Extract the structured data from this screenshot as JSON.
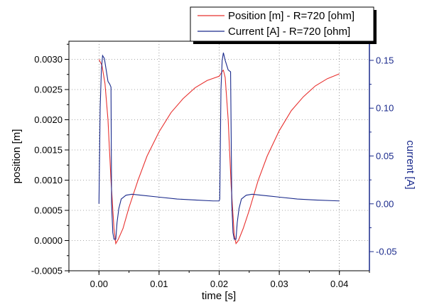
{
  "chart_data": {
    "type": "line",
    "title": "",
    "xlabel": "time [s]",
    "ylabel_left": "position [m]",
    "ylabel_right": "current [A]",
    "xlim": [
      -0.005,
      0.045
    ],
    "ylim_left": [
      -0.0005,
      0.0033
    ],
    "ylim_right": [
      -0.07,
      0.17
    ],
    "x_ticks": [
      {
        "value": 0.0,
        "label": "0.00"
      },
      {
        "value": 0.01,
        "label": "0.01"
      },
      {
        "value": 0.02,
        "label": "0.02"
      },
      {
        "value": 0.03,
        "label": "0.03"
      },
      {
        "value": 0.04,
        "label": "0.04"
      }
    ],
    "y_left_ticks": [
      {
        "value": -0.0005,
        "label": "-0.0005"
      },
      {
        "value": 0.0,
        "label": "0.0000"
      },
      {
        "value": 0.0005,
        "label": "0.0005"
      },
      {
        "value": 0.001,
        "label": "0.0010"
      },
      {
        "value": 0.0015,
        "label": "0.0015"
      },
      {
        "value": 0.002,
        "label": "0.0020"
      },
      {
        "value": 0.0025,
        "label": "0.0025"
      },
      {
        "value": 0.003,
        "label": "0.0030"
      }
    ],
    "y_right_ticks": [
      {
        "value": -0.05,
        "label": "-0.05"
      },
      {
        "value": 0.0,
        "label": "0.00"
      },
      {
        "value": 0.05,
        "label": "0.05"
      },
      {
        "value": 0.1,
        "label": "0.10"
      },
      {
        "value": 0.15,
        "label": "0.15"
      }
    ],
    "grid": true,
    "legend_position": "top-right",
    "series": [
      {
        "name": "Position [m] - R=720 [ohm]",
        "axis": "left",
        "color": "#e8312f",
        "points": [
          [
            0.0,
            0.003
          ],
          [
            0.0005,
            0.0029
          ],
          [
            0.001,
            0.0026
          ],
          [
            0.0015,
            0.002
          ],
          [
            0.002,
            0.001
          ],
          [
            0.0025,
            0.0002
          ],
          [
            0.0028,
            -5e-05
          ],
          [
            0.0032,
            2e-05
          ],
          [
            0.004,
            0.0002
          ],
          [
            0.005,
            0.00055
          ],
          [
            0.0065,
            0.001
          ],
          [
            0.008,
            0.0014
          ],
          [
            0.01,
            0.0018
          ],
          [
            0.012,
            0.00212
          ],
          [
            0.014,
            0.00235
          ],
          [
            0.016,
            0.00253
          ],
          [
            0.018,
            0.00265
          ],
          [
            0.02,
            0.00272
          ],
          [
            0.0202,
            0.00275
          ],
          [
            0.0205,
            0.0028
          ],
          [
            0.0207,
            0.00282
          ],
          [
            0.021,
            0.0027
          ],
          [
            0.0215,
            0.002
          ],
          [
            0.022,
            0.0009
          ],
          [
            0.0225,
            0.0001
          ],
          [
            0.0228,
            -5e-05
          ],
          [
            0.0232,
            0.0
          ],
          [
            0.024,
            0.0002
          ],
          [
            0.025,
            0.0005
          ],
          [
            0.0265,
            0.001
          ],
          [
            0.028,
            0.0014
          ],
          [
            0.03,
            0.00182
          ],
          [
            0.032,
            0.00215
          ],
          [
            0.034,
            0.00238
          ],
          [
            0.036,
            0.00256
          ],
          [
            0.038,
            0.00268
          ],
          [
            0.04,
            0.00276
          ]
        ]
      },
      {
        "name": "Current [A] - R=720 [ohm]",
        "axis": "right",
        "color": "#1a2a8c",
        "points": [
          [
            0.0,
            0.0
          ],
          [
            0.0002,
            0.1
          ],
          [
            0.0004,
            0.14
          ],
          [
            0.0006,
            0.155
          ],
          [
            0.0009,
            0.152
          ],
          [
            0.0012,
            0.14
          ],
          [
            0.0015,
            0.128
          ],
          [
            0.0018,
            0.125
          ],
          [
            0.002,
            0.122
          ],
          [
            0.0021,
            0.0
          ],
          [
            0.0023,
            -0.03
          ],
          [
            0.0025,
            -0.037
          ],
          [
            0.0028,
            -0.037
          ],
          [
            0.003,
            -0.02
          ],
          [
            0.0033,
            -0.005
          ],
          [
            0.0037,
            0.005
          ],
          [
            0.0045,
            0.009
          ],
          [
            0.0055,
            0.01
          ],
          [
            0.007,
            0.009
          ],
          [
            0.01,
            0.007
          ],
          [
            0.013,
            0.005
          ],
          [
            0.016,
            0.004
          ],
          [
            0.019,
            0.003
          ],
          [
            0.02,
            0.003
          ],
          [
            0.0201,
            0.005
          ],
          [
            0.0203,
            0.12
          ],
          [
            0.0205,
            0.15
          ],
          [
            0.0207,
            0.158
          ],
          [
            0.021,
            0.15
          ],
          [
            0.0215,
            0.14
          ],
          [
            0.0219,
            0.138
          ],
          [
            0.0221,
            0.0
          ],
          [
            0.0223,
            -0.03
          ],
          [
            0.0225,
            -0.037
          ],
          [
            0.0228,
            -0.037
          ],
          [
            0.023,
            -0.02
          ],
          [
            0.0233,
            -0.005
          ],
          [
            0.0237,
            0.005
          ],
          [
            0.0245,
            0.009
          ],
          [
            0.0255,
            0.01
          ],
          [
            0.027,
            0.009
          ],
          [
            0.03,
            0.007
          ],
          [
            0.033,
            0.005
          ],
          [
            0.036,
            0.004
          ],
          [
            0.04,
            0.003
          ]
        ]
      }
    ]
  }
}
